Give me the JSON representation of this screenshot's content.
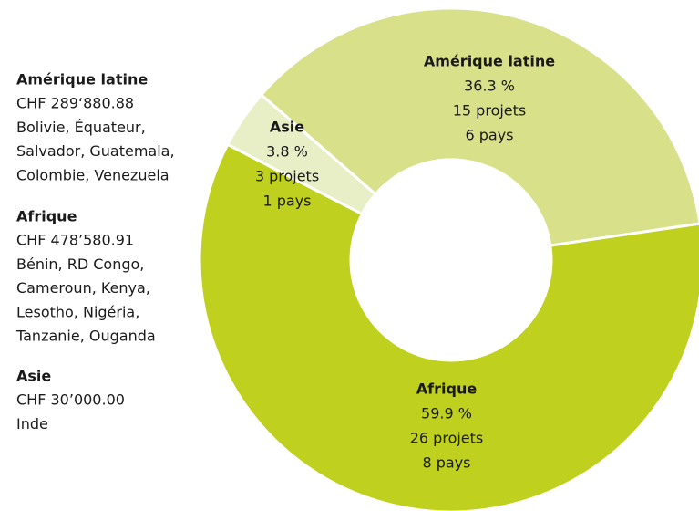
{
  "chart_data": {
    "type": "pie",
    "donut": true,
    "categories": [
      "Amérique latine",
      "Afrique",
      "Asie"
    ],
    "values": [
      36.3,
      59.9,
      3.8
    ],
    "value_labels": [
      "36.3 %",
      "59.9 %",
      "3.8 %"
    ],
    "colors": [
      "#d9e08a",
      "#bfd01e",
      "#e8efc7"
    ],
    "projects": [
      "15 projets",
      "26 projets",
      "3 projets"
    ],
    "countries": [
      "6 pays",
      "8 pays",
      "1 pays"
    ],
    "notes": [
      {
        "title": "Amérique latine",
        "amount": "CHF 289‘880.88",
        "lines": [
          "Bolivie, Équateur,",
          "Salvador, Guatemala,",
          "Colombie, Venezuela"
        ]
      },
      {
        "title": "Afrique",
        "amount": "CHF 478’580.91",
        "lines": [
          "Bénin, RD Congo,",
          "Cameroun, Kenya,",
          "Lesotho, Nigéria,",
          "Tanzanie, Ouganda"
        ]
      },
      {
        "title": "Asie",
        "amount": "CHF 30’000.00",
        "lines": [
          "Inde"
        ]
      }
    ]
  }
}
